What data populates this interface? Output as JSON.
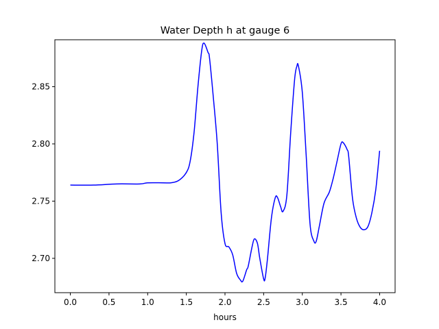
{
  "chart_data": {
    "type": "line",
    "title": "Water Depth h at gauge 6",
    "xlabel": "hours",
    "ylabel": "",
    "xlim": [
      -0.2,
      4.2
    ],
    "ylim": [
      2.67,
      2.891
    ],
    "xticks": [
      0.0,
      0.5,
      1.0,
      1.5,
      2.0,
      2.5,
      3.0,
      3.5,
      4.0
    ],
    "xtick_labels": [
      "0.0",
      "0.5",
      "1.0",
      "1.5",
      "2.0",
      "2.5",
      "3.0",
      "3.5",
      "4.0"
    ],
    "yticks": [
      2.7,
      2.75,
      2.8,
      2.85
    ],
    "ytick_labels": [
      "2.70",
      "2.75",
      "2.80",
      "2.85"
    ],
    "grid": false,
    "series": [
      {
        "color": "#0000ff",
        "x": [
          0.0,
          0.3,
          0.6,
          0.9,
          1.0,
          1.2,
          1.3,
          1.4,
          1.5,
          1.55,
          1.6,
          1.65,
          1.7,
          1.73,
          1.78,
          1.8,
          1.85,
          1.9,
          1.95,
          2.0,
          2.05,
          2.1,
          2.15,
          2.2,
          2.23,
          2.28,
          2.3,
          2.35,
          2.38,
          2.42,
          2.45,
          2.5,
          2.52,
          2.55,
          2.6,
          2.65,
          2.68,
          2.72,
          2.75,
          2.8,
          2.85,
          2.9,
          2.93,
          2.95,
          3.0,
          3.05,
          3.1,
          3.15,
          3.18,
          3.22,
          3.28,
          3.35,
          3.4,
          3.45,
          3.5,
          3.53,
          3.58,
          3.6,
          3.65,
          3.7,
          3.75,
          3.8,
          3.85,
          3.9,
          3.95,
          4.0
        ],
        "y": [
          2.764,
          2.764,
          2.765,
          2.765,
          2.766,
          2.766,
          2.766,
          2.768,
          2.775,
          2.785,
          2.81,
          2.85,
          2.882,
          2.888,
          2.88,
          2.875,
          2.84,
          2.8,
          2.74,
          2.713,
          2.71,
          2.703,
          2.687,
          2.681,
          2.68,
          2.69,
          2.693,
          2.71,
          2.717,
          2.713,
          2.7,
          2.682,
          2.683,
          2.7,
          2.735,
          2.753,
          2.753,
          2.745,
          2.741,
          2.755,
          2.81,
          2.856,
          2.868,
          2.868,
          2.845,
          2.79,
          2.73,
          2.715,
          2.715,
          2.728,
          2.748,
          2.758,
          2.77,
          2.785,
          2.8,
          2.801,
          2.795,
          2.789,
          2.752,
          2.735,
          2.727,
          2.725,
          2.728,
          2.74,
          2.76,
          2.794
        ]
      }
    ]
  }
}
